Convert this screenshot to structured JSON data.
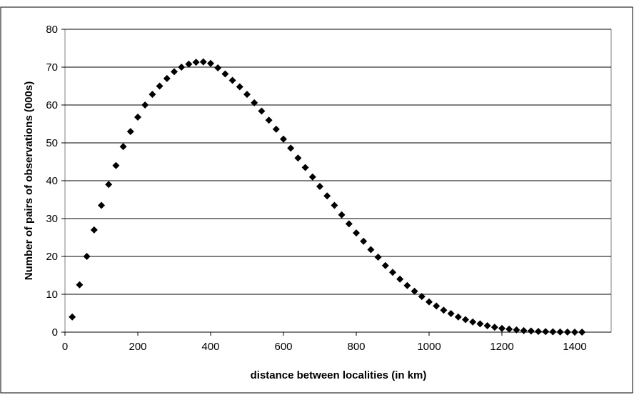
{
  "chart_data": {
    "type": "scatter",
    "xlabel": "distance between localities (in km)",
    "ylabel": "Number of pairs of observations (000s)",
    "xlim": [
      0,
      1500
    ],
    "ylim": [
      0,
      80
    ],
    "xticks": [
      0,
      200,
      400,
      600,
      800,
      1000,
      1200,
      1400
    ],
    "yticks": [
      0,
      10,
      20,
      30,
      40,
      50,
      60,
      70,
      80
    ],
    "grid": "horizontal",
    "marker": "diamond",
    "marker_color": "#000000",
    "series": [
      {
        "x": [
          20,
          40,
          60,
          80,
          100,
          120,
          140,
          160,
          180,
          200,
          220,
          240,
          260,
          280,
          300,
          320,
          340,
          360,
          380,
          400,
          420,
          440,
          460,
          480,
          500,
          520,
          540,
          560,
          580,
          600,
          620,
          640,
          660,
          680,
          700,
          720,
          740,
          760,
          780,
          800,
          820,
          840,
          860,
          880,
          900,
          920,
          940,
          960,
          980,
          1000,
          1020,
          1040,
          1060,
          1080,
          1100,
          1120,
          1140,
          1160,
          1180,
          1200,
          1220,
          1240,
          1260,
          1280,
          1300,
          1320,
          1340,
          1360,
          1380,
          1400,
          1420
        ],
        "y": [
          4,
          12.5,
          20,
          27,
          33.5,
          39,
          44,
          49,
          53,
          56.8,
          60,
          62.8,
          65,
          67,
          68.8,
          70,
          70.8,
          71.3,
          71.4,
          71,
          69.8,
          68.2,
          66.5,
          64.8,
          62.8,
          60.6,
          58.4,
          56,
          53.6,
          51,
          48.6,
          46,
          43.5,
          41,
          38.5,
          36,
          33.5,
          31,
          28.6,
          26.2,
          24,
          21.8,
          19.8,
          17.6,
          15.8,
          14,
          12.3,
          10.8,
          9.4,
          8,
          6.9,
          5.8,
          4.9,
          4,
          3.3,
          2.7,
          2.2,
          1.7,
          1.3,
          1,
          0.8,
          0.6,
          0.4,
          0.3,
          0.2,
          0.15,
          0.1,
          0.05,
          0.02,
          0.01,
          0
        ]
      }
    ]
  }
}
